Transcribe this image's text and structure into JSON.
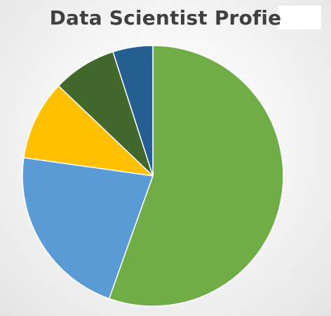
{
  "chart_data": {
    "type": "pie",
    "title": "Data Scientist Profie",
    "start_angle_deg": 0,
    "direction": "clockwise",
    "slices": [
      {
        "value": 56,
        "color": "#70ad47"
      },
      {
        "value": 22,
        "color": "#5b9bd5"
      },
      {
        "value": 10,
        "color": "#ffc000"
      },
      {
        "value": 8,
        "color": "#43682b"
      },
      {
        "value": 5,
        "color": "#255e91"
      }
    ],
    "legend": "none",
    "data_labels": "none"
  }
}
